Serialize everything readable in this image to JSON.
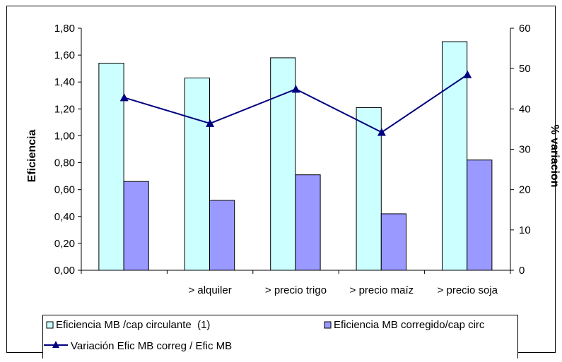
{
  "chart_data": {
    "type": "bar",
    "categories": [
      "",
      "> alquiler",
      "> precio trigo",
      "> precio maíz",
      "> precio soja"
    ],
    "series": [
      {
        "name": "Eficiencia MB /cap circulante  (1)",
        "type": "bar",
        "axis": "left",
        "values": [
          1.54,
          1.43,
          1.58,
          1.21,
          1.7
        ],
        "color": "#ccffff"
      },
      {
        "name": "Eficiencia MB corregido/cap circ",
        "type": "bar",
        "axis": "left",
        "values": [
          0.66,
          0.52,
          0.71,
          0.42,
          0.82
        ],
        "color": "#9999ff"
      },
      {
        "name": "Variación Efic MB correg / Efic MB",
        "type": "line",
        "axis": "right",
        "values": [
          42.8,
          36.4,
          44.9,
          34.2,
          48.5
        ],
        "color": "#000080"
      }
    ],
    "ylabel": "Eficiencia",
    "y2label": "% variacion",
    "ylim": [
      0,
      1.8
    ],
    "y2lim": [
      0,
      60
    ],
    "yticks": [
      "0,00",
      "0,20",
      "0,40",
      "0,60",
      "0,80",
      "1,00",
      "1,20",
      "1,40",
      "1,60",
      "1,80"
    ],
    "y2ticks": [
      "0",
      "10",
      "20",
      "30",
      "40",
      "50",
      "60"
    ],
    "grid": false,
    "legend_position": "bottom"
  }
}
